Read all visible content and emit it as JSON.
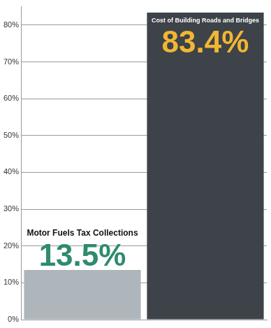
{
  "chart_data": {
    "type": "bar",
    "categories": [
      "Motor Fuels Tax Collections",
      "Cost of Building Roads and Bridges"
    ],
    "values": [
      13.5,
      83.4
    ],
    "value_labels": [
      "13.5%",
      "83.4%"
    ],
    "colors": [
      "#aeb6bb",
      "#3d4349"
    ],
    "ylim": [
      0,
      85
    ],
    "yticks": [
      {
        "value": 0,
        "label": "0%"
      },
      {
        "value": 10,
        "label": "10%"
      },
      {
        "value": 20,
        "label": "20%"
      },
      {
        "value": 30,
        "label": "30%"
      },
      {
        "value": 40,
        "label": "40%"
      },
      {
        "value": 50,
        "label": "50%"
      },
      {
        "value": 60,
        "label": "60%"
      },
      {
        "value": 70,
        "label": "70%"
      },
      {
        "value": 80,
        "label": "80%"
      }
    ],
    "grid": true,
    "data_labels": true,
    "tick_labels": "y"
  }
}
